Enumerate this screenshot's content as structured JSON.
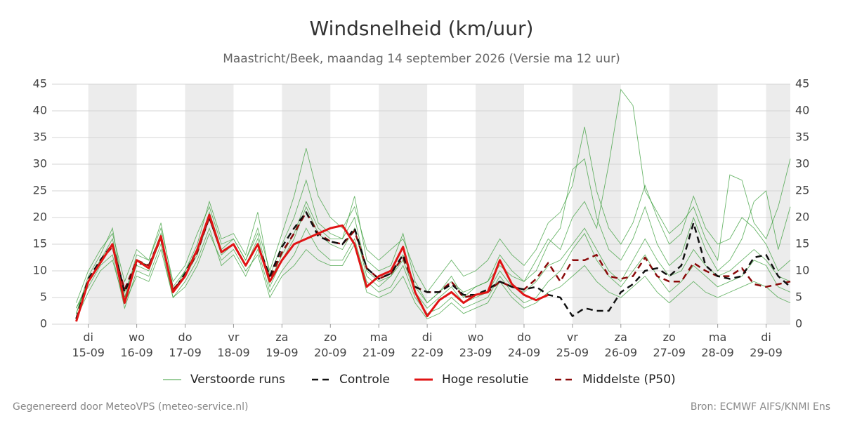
{
  "chart_data": {
    "type": "line",
    "title": "Windsnelheid (km/uur)",
    "subtitle": "Maastricht/Beek, maandag 14 september 2026 (Versie ma 12 uur)",
    "footer_left": "Gegenereerd door MeteoVPS (meteo-service.nl)",
    "footer_right": "Bron: ECMWF AIFS/KNMI Ens",
    "grid": true,
    "shading": "alternate-days",
    "xlim": [
      -0.75,
      14.5
    ],
    "xticks": [
      {
        "value": 0,
        "label": "di\n15-09"
      },
      {
        "value": 1,
        "label": "wo\n16-09"
      },
      {
        "value": 2,
        "label": "do\n17-09"
      },
      {
        "value": 3,
        "label": "vr\n18-09"
      },
      {
        "value": 4,
        "label": "za\n19-09"
      },
      {
        "value": 5,
        "label": "zo\n20-09"
      },
      {
        "value": 6,
        "label": "ma\n21-09"
      },
      {
        "value": 7,
        "label": "di\n22-09"
      },
      {
        "value": 8,
        "label": "wo\n23-09"
      },
      {
        "value": 9,
        "label": "do\n24-09"
      },
      {
        "value": 10,
        "label": "vr\n25-09"
      },
      {
        "value": 11,
        "label": "za\n26-09"
      },
      {
        "value": 12,
        "label": "zo\n27-09"
      },
      {
        "value": 13,
        "label": "ma\n28-09"
      },
      {
        "value": 14,
        "label": "di\n29-09"
      }
    ],
    "ylim": [
      0,
      45
    ],
    "yticks": [
      0,
      5,
      10,
      15,
      20,
      25,
      30,
      35,
      40,
      45
    ],
    "x": [
      -0.25,
      0,
      0.25,
      0.5,
      0.75,
      1,
      1.25,
      1.5,
      1.75,
      2,
      2.25,
      2.5,
      2.75,
      3,
      3.25,
      3.5,
      3.75,
      4,
      4.25,
      4.5,
      4.75,
      5,
      5.25,
      5.5,
      5.75,
      6,
      6.25,
      6.5,
      6.75,
      7,
      7.25,
      7.5,
      7.75,
      8,
      8.25,
      8.5,
      8.75,
      9,
      9.25,
      9.5,
      9.75,
      10,
      10.25,
      10.5,
      10.75,
      11,
      11.25,
      11.5,
      11.75,
      12,
      12.25,
      12.5,
      12.75,
      13,
      13.25,
      13.5,
      13.75,
      14,
      14.25,
      14.5
    ],
    "ensemble": {
      "name": "Verstoorde runs",
      "color": "#3a9e3a",
      "members": [
        [
          2,
          9,
          13,
          18,
          5,
          13,
          12,
          19,
          7,
          10,
          15,
          23,
          16,
          17,
          13,
          21,
          9,
          15,
          20,
          27,
          19,
          17,
          16,
          24,
          12,
          10,
          11,
          17,
          8,
          4,
          6,
          9,
          5,
          7,
          8,
          13,
          10,
          8,
          10,
          15,
          18,
          29,
          31,
          20,
          14,
          12,
          16,
          22,
          15,
          11,
          13,
          20,
          14,
          10,
          12,
          16,
          23,
          25,
          14,
          22
        ],
        [
          3,
          7,
          11,
          13,
          3,
          10,
          9,
          15,
          5,
          8,
          12,
          18,
          11,
          13,
          9,
          14,
          6,
          10,
          13,
          18,
          14,
          12,
          12,
          16,
          8,
          6,
          7,
          11,
          5,
          2,
          3,
          5,
          3,
          4,
          5,
          9,
          6,
          4,
          5,
          8,
          10,
          14,
          17,
          12,
          9,
          7,
          10,
          13,
          9,
          6,
          8,
          11,
          9,
          7,
          8,
          9,
          12,
          11,
          7,
          6
        ],
        [
          4,
          10,
          14,
          17,
          8,
          14,
          12,
          18,
          8,
          11,
          17,
          22,
          15,
          16,
          12,
          18,
          10,
          17,
          24,
          33,
          24,
          20,
          18,
          22,
          14,
          12,
          14,
          16,
          10,
          6,
          9,
          12,
          9,
          10,
          12,
          16,
          13,
          11,
          14,
          19,
          21,
          26,
          37,
          25,
          18,
          15,
          19,
          26,
          20,
          15,
          17,
          24,
          18,
          15,
          16,
          20,
          18,
          15,
          10,
          12
        ],
        [
          1,
          6,
          10,
          12,
          4,
          9,
          8,
          14,
          5,
          7,
          11,
          17,
          12,
          14,
          10,
          13,
          5,
          9,
          11,
          14,
          12,
          11,
          11,
          15,
          6,
          5,
          6,
          9,
          4,
          1,
          2,
          4,
          2,
          3,
          4,
          8,
          5,
          3,
          4,
          6,
          7,
          9,
          11,
          8,
          6,
          5,
          7,
          9,
          6,
          4,
          6,
          8,
          6,
          5,
          6,
          7,
          8,
          7,
          5,
          4
        ],
        [
          3,
          8,
          12,
          16,
          6,
          12,
          11,
          17,
          6,
          10,
          14,
          21,
          14,
          16,
          12,
          17,
          8,
          13,
          17,
          23,
          18,
          16,
          16,
          20,
          10,
          8,
          9,
          13,
          7,
          4,
          6,
          8,
          6,
          7,
          8,
          11,
          9,
          8,
          12,
          16,
          14,
          20,
          23,
          18,
          30,
          44,
          41,
          25,
          21,
          17,
          19,
          22,
          16,
          12,
          28,
          27,
          19,
          16,
          22,
          31
        ],
        [
          2,
          8,
          12,
          15,
          5,
          11,
          10,
          16,
          6,
          9,
          13,
          20,
          13,
          15,
          11,
          16,
          7,
          12,
          16,
          22,
          17,
          15,
          14,
          18,
          9,
          7,
          9,
          12,
          6,
          3,
          5,
          7,
          4,
          5,
          6,
          10,
          7,
          6,
          8,
          11,
          12,
          15,
          18,
          14,
          10,
          8,
          12,
          16,
          12,
          9,
          10,
          14,
          11,
          9,
          10,
          12,
          14,
          12,
          9,
          8
        ]
      ]
    },
    "series": [
      {
        "name": "Controle",
        "color": "#111111",
        "dash": true,
        "values": [
          1,
          8.5,
          12,
          15,
          6,
          11.5,
          11,
          16.5,
          6,
          9.5,
          14,
          20,
          13.5,
          15,
          11,
          15,
          9,
          14.5,
          18,
          21,
          16.5,
          15.5,
          15,
          18,
          10.5,
          8.5,
          9.5,
          13,
          7,
          6,
          6,
          7.5,
          5.5,
          5.5,
          6.5,
          8,
          7,
          6.5,
          7,
          5.5,
          5,
          1.5,
          3,
          2.5,
          2.5,
          6,
          7.5,
          10,
          10.5,
          9,
          11,
          19,
          11,
          9,
          8.5,
          9,
          12.5,
          13,
          9,
          7
        ]
      },
      {
        "name": "Hoge resolutie",
        "color": "#e01414",
        "dash": false,
        "values": [
          0.5,
          8,
          11.5,
          15,
          4,
          12,
          10.5,
          16.5,
          6,
          9,
          14,
          20.5,
          13.5,
          15,
          11,
          15,
          8,
          12,
          15,
          16,
          17,
          18,
          18.5,
          15,
          7,
          9,
          10,
          14.5,
          6,
          1.5,
          4.5,
          6,
          4,
          5.5,
          6,
          12,
          7.5,
          5.5,
          4.5,
          5.5,
          null,
          null,
          null,
          null,
          null,
          null,
          null,
          null,
          null,
          null,
          null,
          null,
          null,
          null,
          null,
          null,
          null,
          null,
          null,
          null
        ]
      },
      {
        "name": "Middelste (P50)",
        "color": "#8b0a0a",
        "dash": true,
        "values": [
          1,
          8,
          12,
          14.5,
          6.5,
          12,
          11,
          16,
          6.5,
          9,
          13.5,
          20,
          13.5,
          15,
          11,
          15,
          8.5,
          13.5,
          17,
          21,
          17,
          15.5,
          15,
          17.5,
          10.5,
          8.5,
          9.5,
          12.5,
          7,
          6,
          6,
          8,
          5,
          5.5,
          6,
          8,
          7,
          6.5,
          8.5,
          11.5,
          8,
          12,
          12,
          13,
          9,
          8.5,
          9,
          12.5,
          9,
          8,
          8,
          11.5,
          10,
          9,
          9,
          10.5,
          7.5,
          7,
          7.5,
          8
        ]
      }
    ]
  }
}
